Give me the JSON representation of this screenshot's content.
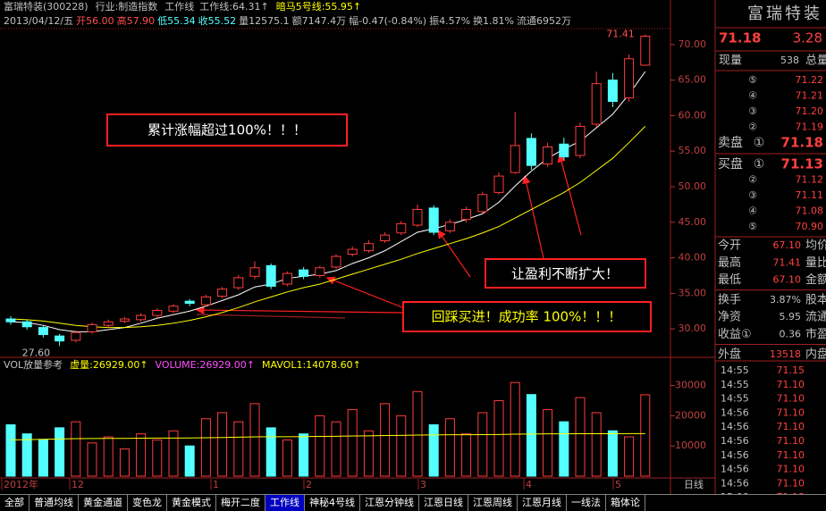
{
  "header": {
    "stock": "富瑞特装(300228)",
    "industry": "行业:制造指数",
    "indicator": "工作线",
    "indicator_value": "工作线:64.31↑",
    "dark_horse": "暗马5号线:55.95↑",
    "bar_info": "2013/04/12/五",
    "open": "开56.00",
    "high": "高57.90",
    "low": "低55.34",
    "close": "收55.52",
    "vol": "量12575.1",
    "amount": "额7147.4万",
    "range": "幅-0.47(-0.84%)",
    "amplitude": "振4.57%",
    "turnover": "换1.81%",
    "float": "流通6952万"
  },
  "chart_data": [
    {
      "type": "candlestick",
      "ylim": [
        26,
        72.5
      ],
      "yticks": [
        {
          "value": 30,
          "label": "30.00"
        },
        {
          "value": 35,
          "label": "35.00"
        },
        {
          "value": 40,
          "label": "40.00"
        },
        {
          "value": 45,
          "label": "45.00"
        },
        {
          "value": 50,
          "label": "50.00"
        },
        {
          "value": 55,
          "label": "55.00"
        },
        {
          "value": 60,
          "label": "60.00"
        },
        {
          "value": 65,
          "label": "65.00"
        },
        {
          "value": 70,
          "label": "70.00"
        }
      ],
      "up_color": "#ff3c3c",
      "down_color": "#54ffff",
      "open": [
        31.4,
        31.0,
        30.2,
        29.0,
        28.4,
        29.6,
        30.5,
        31.1,
        31.3,
        31.9,
        32.5,
        33.9,
        33.4,
        34.6,
        35.8,
        37.4,
        38.9,
        36.3,
        38.3,
        37.5,
        38.7,
        40.5,
        41.0,
        42.4,
        43.5,
        44.6,
        47.0,
        43.8,
        45.4,
        46.5,
        49.2,
        52.0,
        56.8,
        53.2,
        56.0,
        54.4,
        58.8,
        65.0,
        62.5,
        67.1
      ],
      "high": [
        31.8,
        31.3,
        30.5,
        29.3,
        29.8,
        30.9,
        31.3,
        31.7,
        32.2,
        32.9,
        33.5,
        34.2,
        34.8,
        35.9,
        37.6,
        39.5,
        39.2,
        38.1,
        38.7,
        38.9,
        40.5,
        41.6,
        42.5,
        43.6,
        45.2,
        47.5,
        47.4,
        45.4,
        47.2,
        49.3,
        52.0,
        60.5,
        57.5,
        56.2,
        56.9,
        59.0,
        66.2,
        66.0,
        68.6,
        71.41
      ],
      "low": [
        30.6,
        29.9,
        28.8,
        27.6,
        28.1,
        29.3,
        30.2,
        30.8,
        31.0,
        31.6,
        32.2,
        33.2,
        33.1,
        34.3,
        35.5,
        37.0,
        35.6,
        36.0,
        37.0,
        37.2,
        38.4,
        40.2,
        40.7,
        42.1,
        43.2,
        44.3,
        43.2,
        43.5,
        45.0,
        46.2,
        48.9,
        51.8,
        52.4,
        52.8,
        53.8,
        54.0,
        58.4,
        61.2,
        62.0,
        67.1
      ],
      "close": [
        31.0,
        30.3,
        29.2,
        28.3,
        29.5,
        30.6,
        31.0,
        31.4,
        31.9,
        32.6,
        33.2,
        33.6,
        34.5,
        35.6,
        37.2,
        38.6,
        36.0,
        37.8,
        37.4,
        38.6,
        40.2,
        41.2,
        42.0,
        43.2,
        44.8,
        46.8,
        43.6,
        45.0,
        46.8,
        48.9,
        51.5,
        55.8,
        53.0,
        55.6,
        54.2,
        58.5,
        64.5,
        62.0,
        68.0,
        71.18
      ],
      "lines": [
        {
          "color": "#ffffff",
          "values": [
            31.0,
            30.9,
            30.5,
            29.9,
            29.6,
            29.6,
            29.9,
            30.2,
            30.8,
            31.5,
            32.0,
            32.5,
            33.2,
            34.0,
            34.8,
            35.9,
            36.3,
            37.1,
            37.4,
            37.7,
            38.2,
            39.2,
            40.0,
            41.0,
            42.3,
            43.6,
            44.1,
            44.7,
            45.4,
            46.2,
            47.8,
            50.1,
            52.2,
            54.0,
            55.3,
            56.4,
            58.3,
            60.2,
            63.0,
            66.2
          ]
        },
        {
          "color": "#ffff00",
          "values": [
            31.4,
            31.3,
            31.1,
            30.8,
            30.5,
            30.3,
            30.2,
            30.2,
            30.3,
            30.5,
            30.8,
            31.2,
            31.7,
            32.3,
            33.0,
            33.8,
            34.5,
            35.2,
            35.8,
            36.3,
            37.0,
            37.7,
            38.4,
            39.1,
            39.8,
            40.6,
            41.3,
            42.0,
            42.7,
            43.5,
            44.4,
            45.6,
            46.8,
            48.0,
            49.2,
            50.6,
            52.3,
            54.0,
            56.2,
            58.5
          ]
        }
      ],
      "high_label": "71.41",
      "low_label": "27.60",
      "annotations": [
        "累计涨幅超过100%！！！",
        "让盈利不断扩大！",
        "回踩买进！成功率 100%！！！"
      ]
    },
    {
      "type": "volume",
      "title": "VOL放量参考",
      "virtual": "虚量:26929.00↑",
      "volume_label": "VOLUME:26929.00↑",
      "mavol": "MAVOL1:14078.60↑",
      "ylim": [
        0,
        34000
      ],
      "yticks": [
        10000,
        20000,
        30000
      ],
      "values": [
        17000,
        14000,
        12000,
        16000,
        18000,
        11000,
        13000,
        9000,
        14000,
        12000,
        15000,
        10000,
        19000,
        21000,
        18000,
        24000,
        16000,
        12000,
        14000,
        20000,
        18000,
        22000,
        15000,
        24000,
        20000,
        28000,
        17000,
        19000,
        14000,
        21000,
        25000,
        31000,
        27000,
        22000,
        18000,
        26000,
        21000,
        15000,
        13000,
        26929
      ],
      "mavol_values": [
        12000,
        12100,
        12200,
        12300,
        12400,
        12450,
        12500,
        12500,
        12550,
        12600,
        12600,
        12650,
        12700,
        12800,
        12900,
        13000,
        13050,
        13050,
        13100,
        13150,
        13200,
        13300,
        13350,
        13450,
        13500,
        13600,
        13650,
        13700,
        13700,
        13750,
        13800,
        13900,
        13950,
        14000,
        14000,
        14050,
        14050,
        14060,
        14070,
        14078.6
      ],
      "mavol_color": "#ffff00",
      "x_labels": [
        "2012年",
        "12",
        "1",
        "2",
        "3",
        "4",
        "5"
      ],
      "period": "日线"
    }
  ],
  "right_panel": {
    "name": "富瑞特装",
    "price": "71.18",
    "change": "3.28",
    "volume_label": "现量",
    "volume": "538",
    "total_label": "总量",
    "sell": [
      {
        "idx": "⑤",
        "price": "71.22"
      },
      {
        "idx": "④",
        "price": "71.21"
      },
      {
        "idx": "③",
        "price": "71.20"
      },
      {
        "idx": "②",
        "price": "71.19"
      },
      {
        "side": "卖盘",
        "idx": "①",
        "price": "71.18"
      }
    ],
    "buy": [
      {
        "side": "买盘",
        "idx": "①",
        "price": "71.13"
      },
      {
        "idx": "②",
        "price": "71.12"
      },
      {
        "idx": "③",
        "price": "71.11"
      },
      {
        "idx": "④",
        "price": "71.08"
      },
      {
        "idx": "⑤",
        "price": "70.90"
      }
    ],
    "stats": [
      {
        "label": "今开",
        "value": "67.10",
        "label2": "均价"
      },
      {
        "label": "最高",
        "value": "71.41",
        "label2": "量比"
      },
      {
        "label": "最低",
        "value": "67.10",
        "label2": "金额"
      },
      {
        "label": "换手",
        "value": "3.87%",
        "label2": "股本"
      },
      {
        "label": "净资",
        "value": "5.95",
        "label2": "流通"
      },
      {
        "label": "收益①",
        "value": "0.36",
        "label2": "市盈"
      },
      {
        "label": "外盘",
        "value": "13518",
        "label2": "内盘"
      }
    ],
    "ticks": [
      {
        "time": "14:55",
        "price": "71.15"
      },
      {
        "time": "14:55",
        "price": "71.10"
      },
      {
        "time": "14:55",
        "price": "71.10"
      },
      {
        "time": "14:56",
        "price": "71.10"
      },
      {
        "time": "14:56",
        "price": "71.10"
      },
      {
        "time": "14:56",
        "price": "71.10"
      },
      {
        "time": "14:56",
        "price": "71.10"
      },
      {
        "time": "14:56",
        "price": "71.10"
      },
      {
        "time": "14:56",
        "price": "71.10"
      },
      {
        "time": "15:00",
        "price": "71.18"
      }
    ]
  },
  "tabs": [
    "全部",
    "普通均线",
    "黄金通道",
    "变色龙",
    "黄金模式",
    "梅开二度",
    "工作线",
    "神秘4号线",
    "江恩分钟线",
    "江恩日线",
    "江恩周线",
    "江恩月线",
    "一线法",
    "箱体论"
  ],
  "active_tab": 6
}
